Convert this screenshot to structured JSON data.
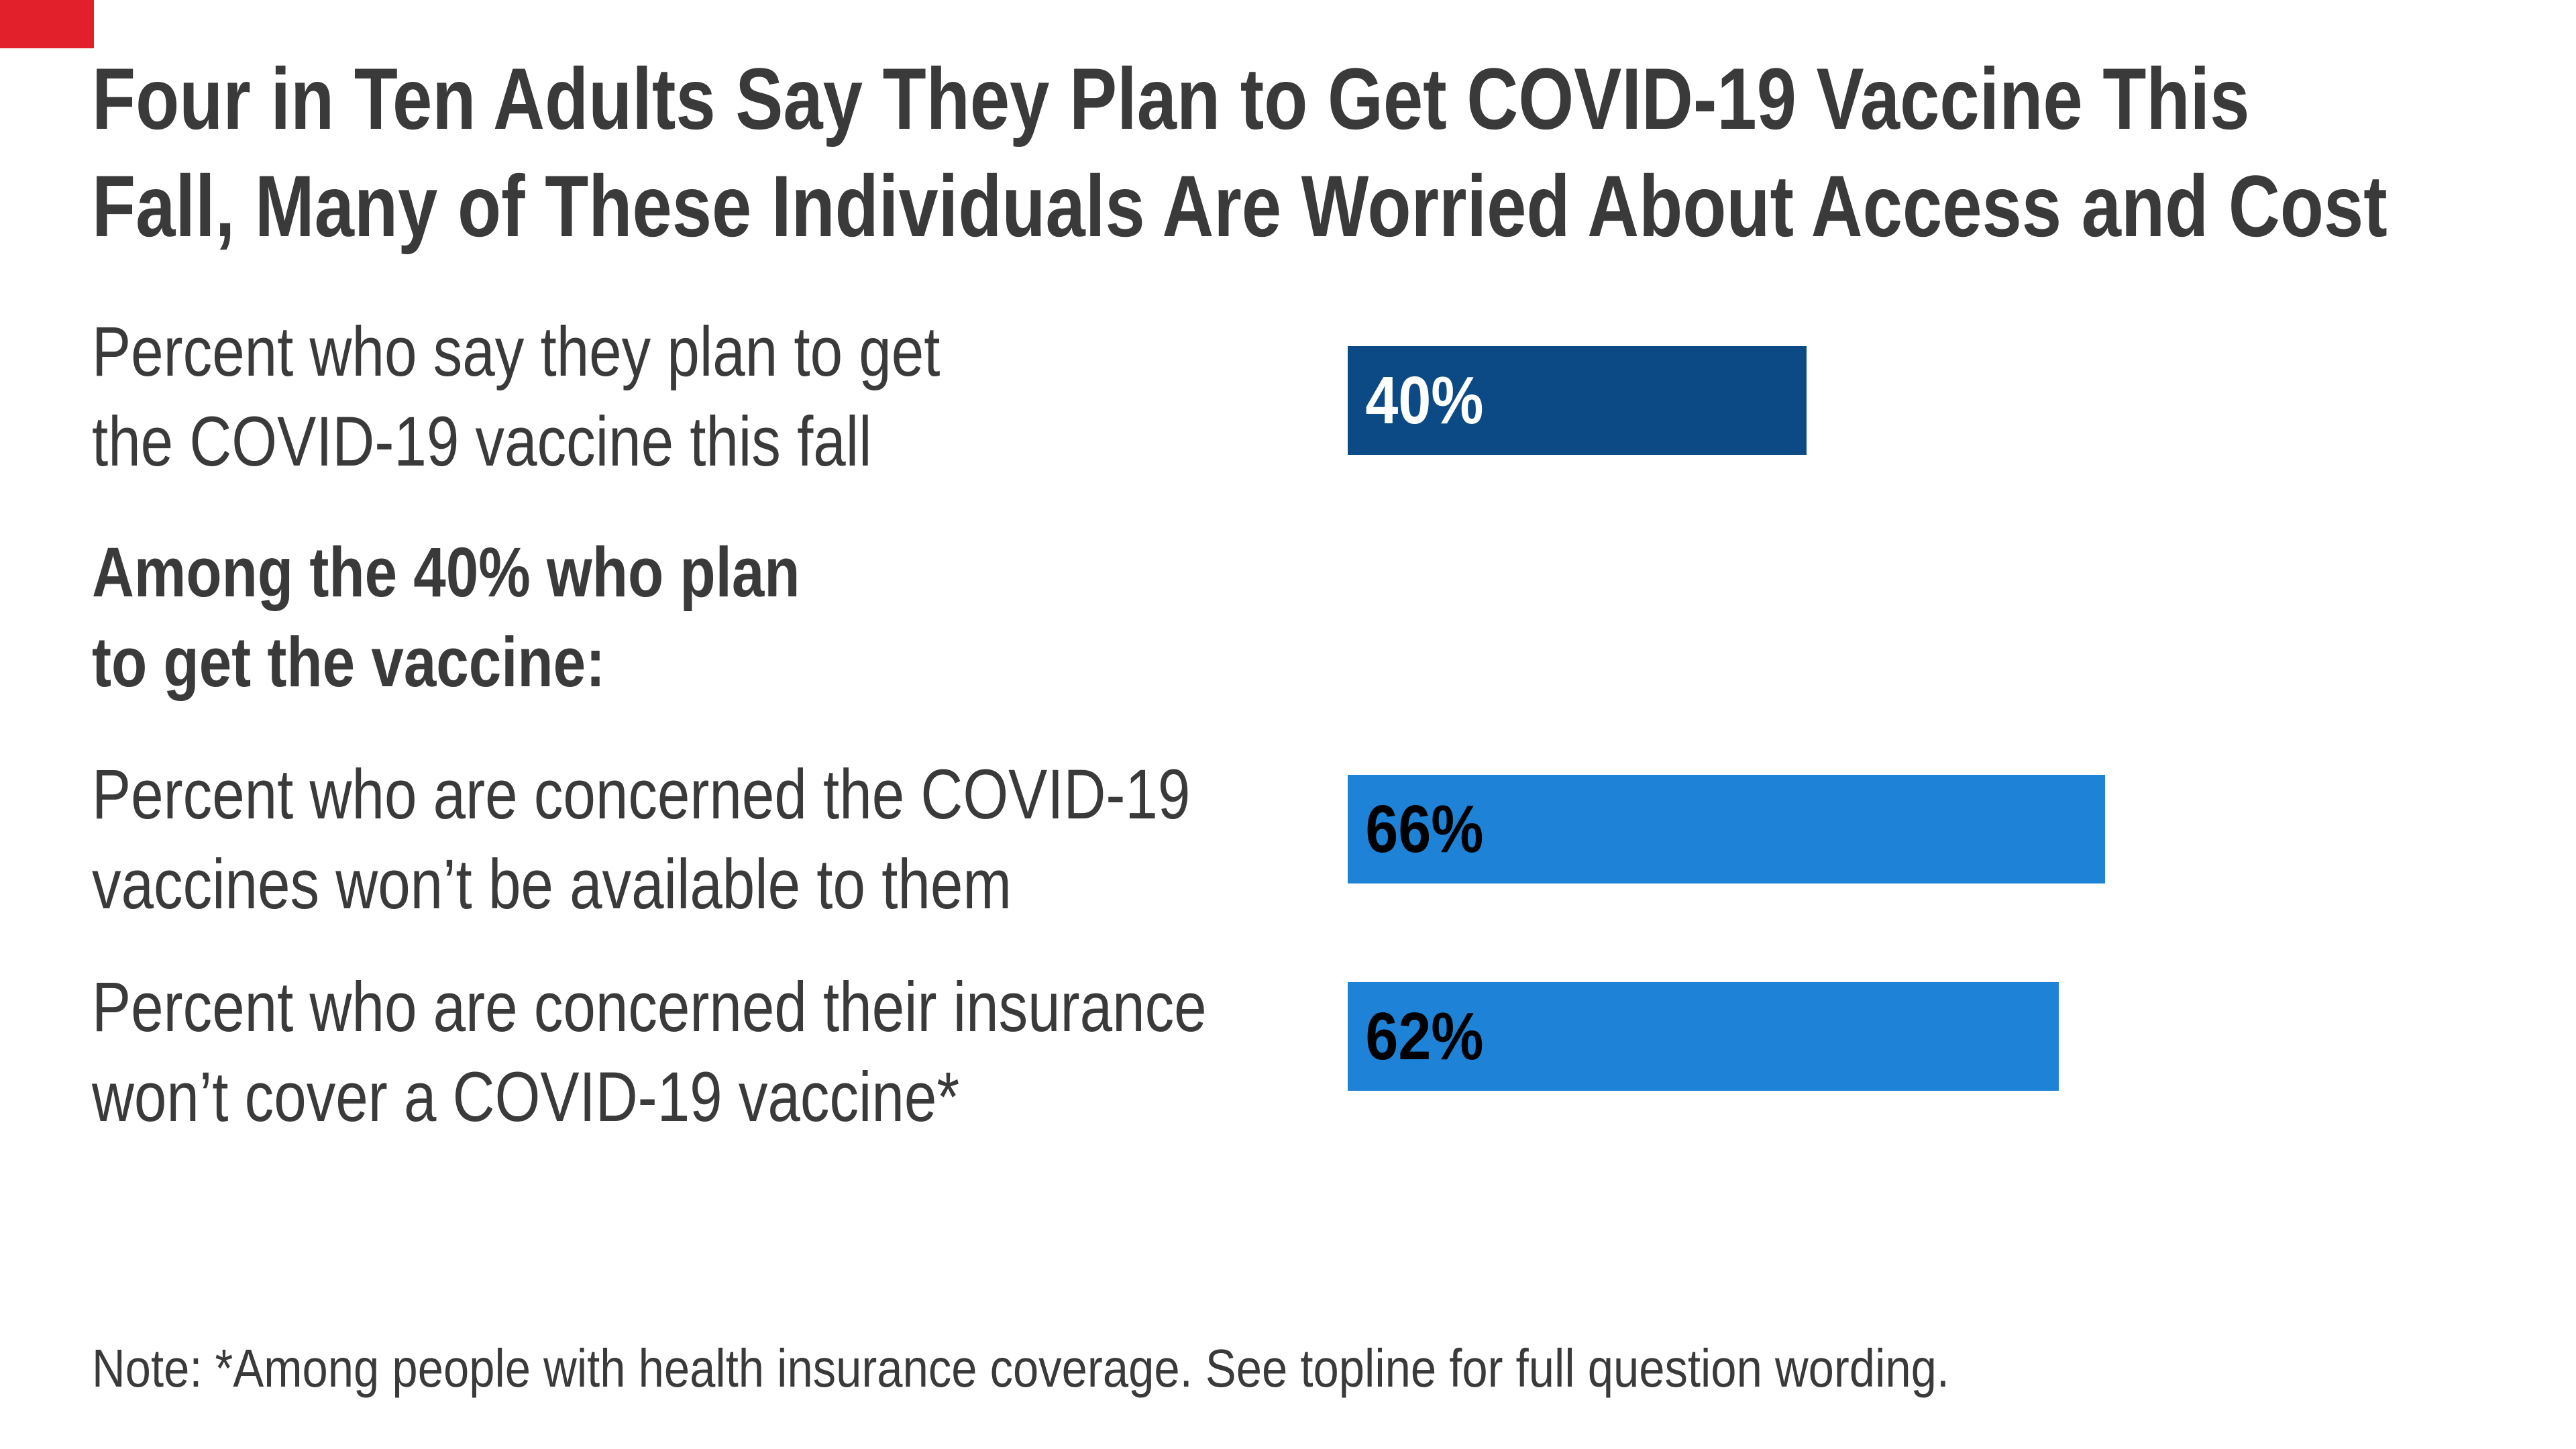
{
  "brand": {
    "accent_color": "#E2202B"
  },
  "colors": {
    "text": "#3A3A3A",
    "bar_dark_blue": "#0B4A84",
    "bar_light_blue": "#1E82D6",
    "value_on_dark": "#FFFFFF",
    "value_on_light": "#000000",
    "background": "#FFFFFF"
  },
  "title": {
    "text": "Four in Ten Adults Say They Plan to Get COVID-19 Vaccine This Fall, Many of These Individuals Are Worried About Access and Cost",
    "lines": [
      "Four in Ten Adults Say They Plan to Get COVID-19 Vaccine This",
      "Fall, Many of These Individuals Are Worried About Access and Cost"
    ]
  },
  "chart_data": {
    "type": "bar",
    "orientation": "horizontal",
    "title": "Four in Ten Adults Say They Plan to Get COVID-19 Vaccine This Fall, Many of These Individuals Are Worried About Access and Cost",
    "xlim": [
      0,
      100
    ],
    "grid": false,
    "legend": false,
    "section_header": {
      "text": "Among the 40% who plan to get the vaccine:",
      "lines": [
        "Among the 40% who plan",
        "to get the vaccine:"
      ]
    },
    "rows": [
      {
        "label": "Percent who say they plan to get the COVID-19 vaccine this fall",
        "label_lines": [
          "Percent who say they plan to get",
          "the COVID-19 vaccine this fall"
        ],
        "value": 40,
        "value_label": "40%",
        "bar_color": "#0B4A84",
        "value_text_color": "#FFFFFF"
      },
      {
        "label": "Percent who are concerned the COVID-19 vaccines won’t be available to them",
        "label_lines": [
          "Percent who are concerned the COVID-19",
          "vaccines won’t be available to them"
        ],
        "value": 66,
        "value_label": "66%",
        "bar_color": "#1E82D6",
        "value_text_color": "#000000"
      },
      {
        "label": "Percent who are concerned their insurance won’t cover a COVID-19 vaccine*",
        "label_lines": [
          "Percent who are concerned their insurance",
          "won’t cover a COVID-19 vaccine*"
        ],
        "value": 62,
        "value_label": "62%",
        "bar_color": "#1E82D6",
        "value_text_color": "#000000"
      }
    ],
    "note": "Note: *Among people with health insurance coverage. See topline for full question wording."
  }
}
